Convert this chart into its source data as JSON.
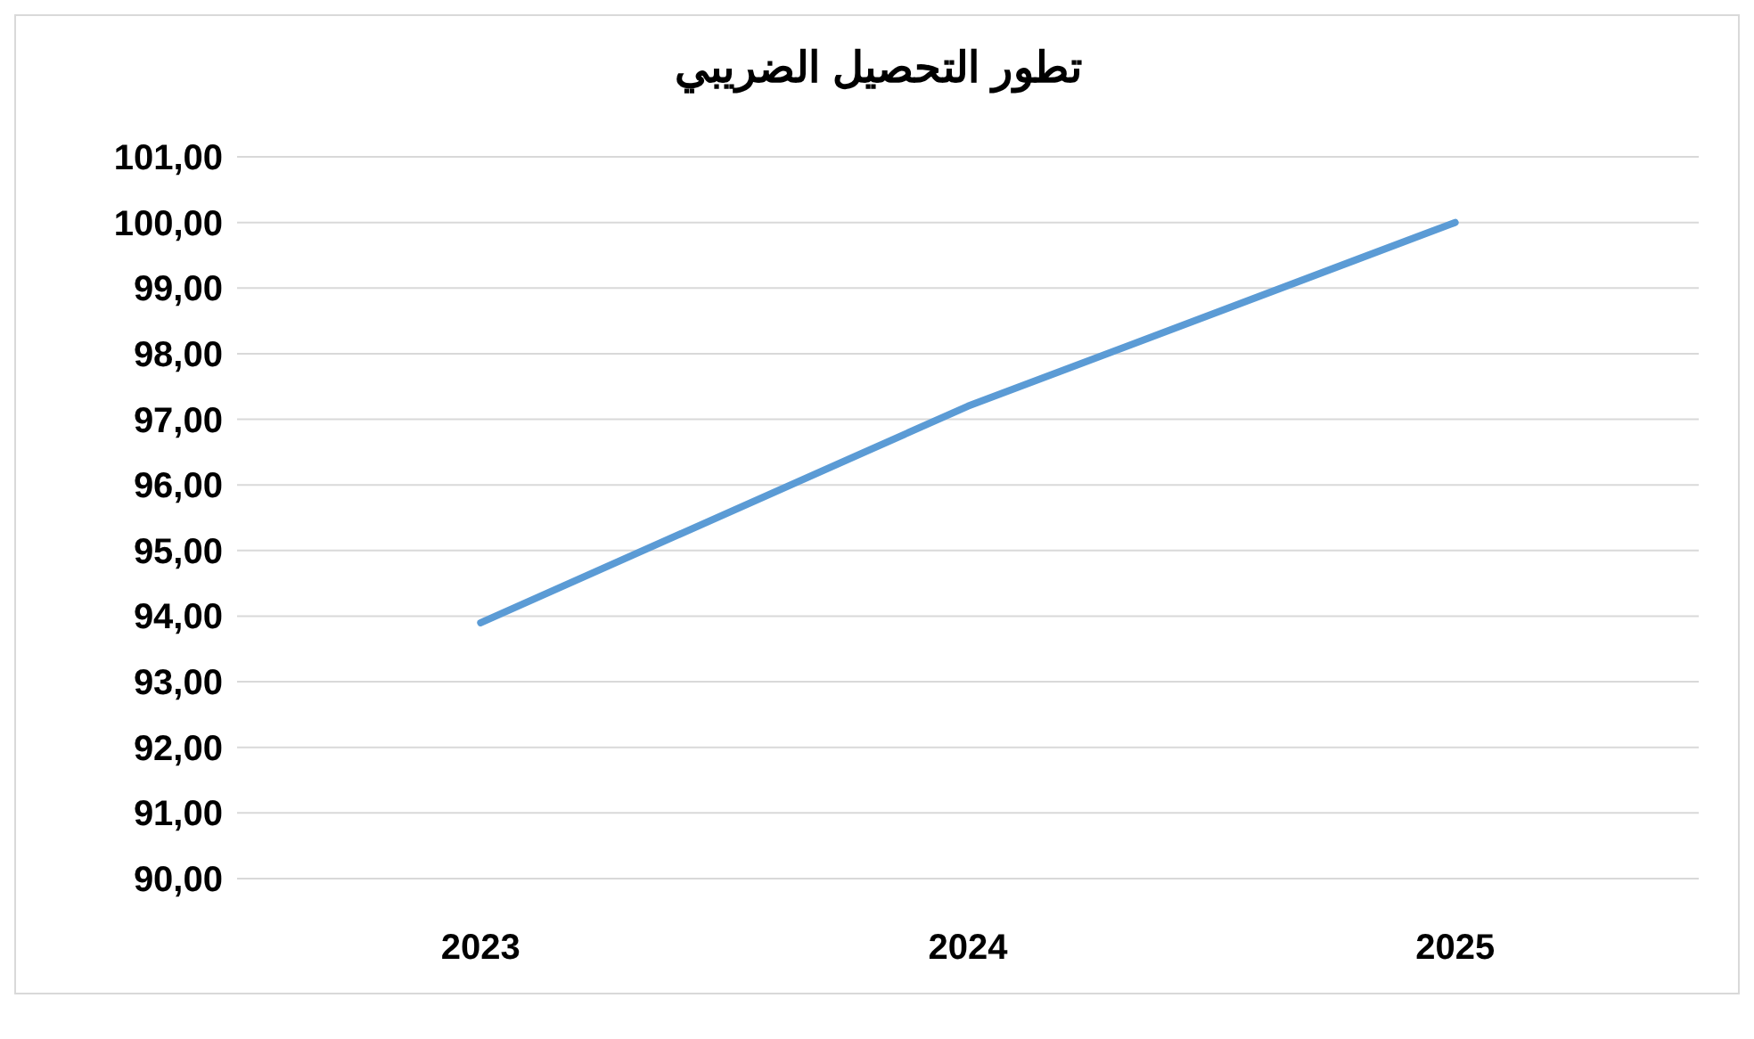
{
  "chart_data": {
    "type": "line",
    "title": "تطور التحصيل الضريبي",
    "categories": [
      "2023",
      "2024",
      "2025"
    ],
    "series": [
      {
        "color": "#5b9bd5",
        "values": [
          93.9,
          97.2,
          100.0
        ]
      }
    ],
    "ylim": [
      90,
      101
    ],
    "yticks": [
      {
        "value": 90,
        "label": "90,00"
      },
      {
        "value": 91,
        "label": "91,00"
      },
      {
        "value": 92,
        "label": "92,00"
      },
      {
        "value": 93,
        "label": "93,00"
      },
      {
        "value": 94,
        "label": "94,00"
      },
      {
        "value": 95,
        "label": "95,00"
      },
      {
        "value": 96,
        "label": "96,00"
      },
      {
        "value": 97,
        "label": "97,00"
      },
      {
        "value": 98,
        "label": "98,00"
      },
      {
        "value": 99,
        "label": "99,00"
      },
      {
        "value": 100,
        "label": "100,00"
      },
      {
        "value": 101,
        "label": "101,00"
      }
    ],
    "grid": "y",
    "marker": "none",
    "line_style": "solid"
  }
}
